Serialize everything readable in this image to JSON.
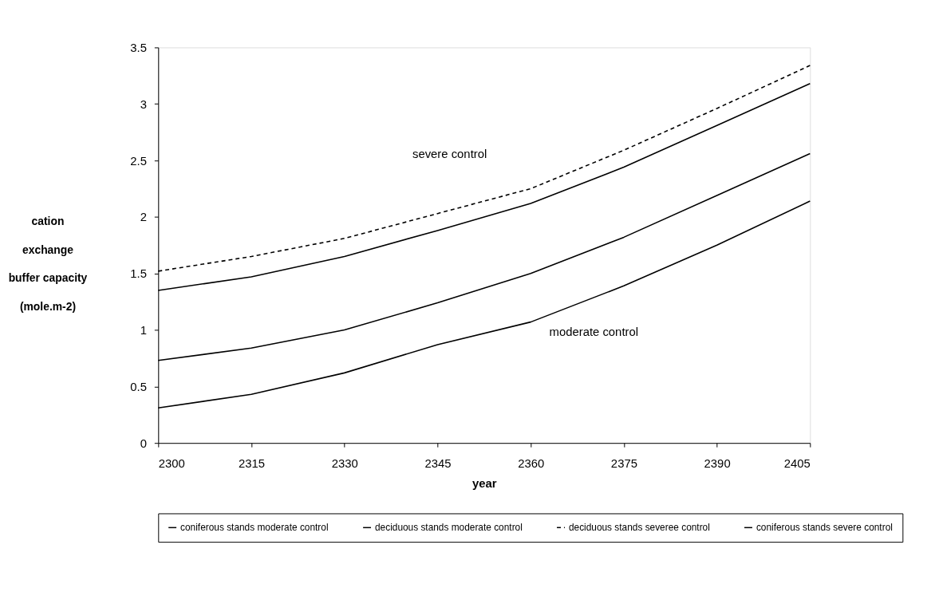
{
  "chart_data": {
    "type": "line",
    "xlabel": "year",
    "ylabel": "cation\nexchange\nbuffer capacity\n\n(mole.m-2)",
    "x": [
      2300,
      2315,
      2330,
      2345,
      2360,
      2375,
      2390,
      2405
    ],
    "series": [
      {
        "name": "coniferous stands moderate control",
        "color": "#000000",
        "line_style": "solid",
        "values": [
          0.31,
          0.43,
          0.62,
          0.87,
          1.07,
          1.39,
          1.75,
          2.14
        ]
      },
      {
        "name": "deciduous stands moderate control",
        "color": "#000000",
        "line_style": "solid",
        "values": [
          0.73,
          0.84,
          1.0,
          1.24,
          1.5,
          1.82,
          2.19,
          2.56
        ]
      },
      {
        "name": "deciduous stands severee control",
        "color": "#000000",
        "line_style": "dashed",
        "values": [
          1.52,
          1.65,
          1.81,
          2.03,
          2.25,
          2.59,
          2.96,
          3.34
        ]
      },
      {
        "name": "coniferous stands severe control",
        "color": "#000000",
        "line_style": "solid",
        "values": [
          1.35,
          1.47,
          1.65,
          1.88,
          2.12,
          2.44,
          2.81,
          3.18
        ]
      }
    ],
    "xlim": [
      2300,
      2405
    ],
    "xticks": [
      2300,
      2315,
      2330,
      2345,
      2360,
      2375,
      2390,
      2405
    ],
    "ylim": [
      0,
      3.5
    ],
    "yticks": [
      0,
      0.5,
      1,
      1.5,
      2,
      2.5,
      3,
      3.5
    ],
    "annotations": [
      "severe control",
      "moderate control"
    ],
    "grid": false,
    "legend": "bottom",
    "marker": "none"
  }
}
